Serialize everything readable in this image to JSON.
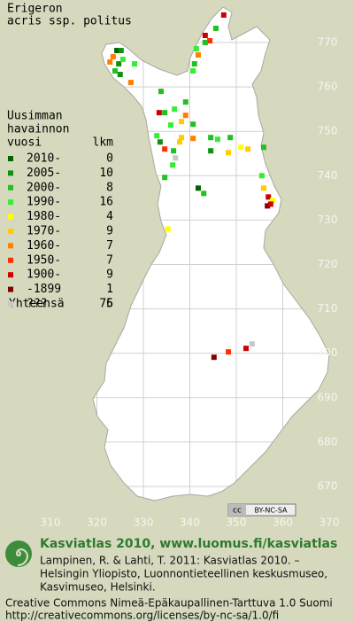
{
  "title": [
    "Erigeron",
    "acris ssp. politus"
  ],
  "legend": {
    "heading": [
      "Uusimman",
      "havainnon",
      "vuosi"
    ],
    "count_heading": "lkm",
    "entries": [
      {
        "label": "2010-",
        "count": 0,
        "color": "#006400"
      },
      {
        "label": "2005-",
        "count": 10,
        "color": "#109010"
      },
      {
        "label": "2000-",
        "count": 8,
        "color": "#22c022"
      },
      {
        "label": "1990-",
        "count": 16,
        "color": "#33ee33"
      },
      {
        "label": "1980-",
        "count": 4,
        "color": "#ffff00"
      },
      {
        "label": "1970-",
        "count": 9,
        "color": "#ffcc00"
      },
      {
        "label": "1960-",
        "count": 7,
        "color": "#ff8000"
      },
      {
        "label": "1950-",
        "count": 7,
        "color": "#ff3000"
      },
      {
        "label": "1900-",
        "count": 9,
        "color": "#cc0000"
      },
      {
        "label": "-1899",
        "count": 1,
        "color": "#800000"
      },
      {
        "label": "???",
        "count": 5,
        "color": "#c8c8c8"
      }
    ],
    "total_label": "Yhteensä",
    "total": 76
  },
  "map": {
    "xlim": [
      310,
      370
    ],
    "ylim": [
      670,
      770
    ],
    "xticks": [
      310,
      320,
      330,
      340,
      350,
      360,
      370
    ],
    "yticks": [
      670,
      680,
      690,
      700,
      710,
      720,
      730,
      740,
      750,
      760,
      770
    ],
    "points": [
      [
        347.3,
        776.2,
        8
      ],
      [
        345.6,
        773.2,
        2
      ],
      [
        343.3,
        771.6,
        8
      ],
      [
        344.3,
        770.4,
        7
      ],
      [
        343.3,
        770.0,
        2
      ],
      [
        341.4,
        768.6,
        3
      ],
      [
        341.8,
        767.2,
        6
      ],
      [
        341.0,
        765.2,
        2
      ],
      [
        340.7,
        763.6,
        3
      ],
      [
        324.3,
        768.2,
        0
      ],
      [
        325.2,
        768.2,
        1
      ],
      [
        323.5,
        766.8,
        6
      ],
      [
        322.8,
        765.6,
        6
      ],
      [
        324.7,
        765.2,
        1
      ],
      [
        325.6,
        766.2,
        3
      ],
      [
        323.9,
        763.6,
        2
      ],
      [
        325.0,
        762.8,
        1
      ],
      [
        328.1,
        765.2,
        3
      ],
      [
        327.3,
        761.0,
        6
      ],
      [
        333.8,
        759.0,
        2
      ],
      [
        339.1,
        756.6,
        2
      ],
      [
        336.7,
        755.0,
        3
      ],
      [
        333.4,
        754.2,
        8
      ],
      [
        334.6,
        754.2,
        2
      ],
      [
        339.1,
        753.6,
        6
      ],
      [
        338.2,
        752.2,
        5
      ],
      [
        340.7,
        751.6,
        2
      ],
      [
        335.9,
        751.4,
        3
      ],
      [
        332.9,
        749.0,
        3
      ],
      [
        333.6,
        747.6,
        1
      ],
      [
        334.6,
        746.0,
        7
      ],
      [
        338.2,
        748.6,
        5
      ],
      [
        337.8,
        747.6,
        5
      ],
      [
        340.7,
        748.4,
        6
      ],
      [
        344.5,
        748.6,
        2
      ],
      [
        346.0,
        748.2,
        3
      ],
      [
        348.7,
        748.6,
        2
      ],
      [
        351.0,
        746.4,
        4
      ],
      [
        348.3,
        745.2,
        5
      ],
      [
        352.5,
        746.0,
        5
      ],
      [
        344.5,
        745.6,
        1
      ],
      [
        336.5,
        745.6,
        2
      ],
      [
        336.9,
        744.0,
        10
      ],
      [
        336.3,
        742.4,
        3
      ],
      [
        334.6,
        739.6,
        2
      ],
      [
        341.8,
        737.2,
        0
      ],
      [
        343.0,
        736.0,
        2
      ],
      [
        355.9,
        746.4,
        2
      ],
      [
        355.5,
        740.0,
        3
      ],
      [
        355.9,
        737.2,
        5
      ],
      [
        356.9,
        735.2,
        8
      ],
      [
        357.8,
        734.4,
        4
      ],
      [
        356.7,
        733.2,
        9
      ],
      [
        357.4,
        733.6,
        8
      ],
      [
        335.3,
        728.0,
        4
      ],
      [
        345.2,
        699.1,
        9
      ],
      [
        348.3,
        700.3,
        7
      ],
      [
        352.1,
        701.1,
        8
      ],
      [
        353.4,
        702.1,
        10
      ]
    ]
  },
  "badge": {
    "cc": "cc",
    "text": "BY-NC-SA"
  },
  "footer": {
    "headline": "Kasviatlas 2010, www.luomus.fi/kasviatlas",
    "citation": [
      "Lampinen, R. & Lahti, T. 2011: Kasviatlas 2010. –",
      "Helsingin Yliopisto, Luonnontieteellinen keskusmuseo,",
      "Kasvimuseo, Helsinki."
    ],
    "license": [
      "Creative Commons Nimeä-Epäkaupallinen-Tarttuva 1.0 Suomi",
      "http://creativecommons.org/licenses/by-nc-sa/1.0/fi"
    ]
  }
}
